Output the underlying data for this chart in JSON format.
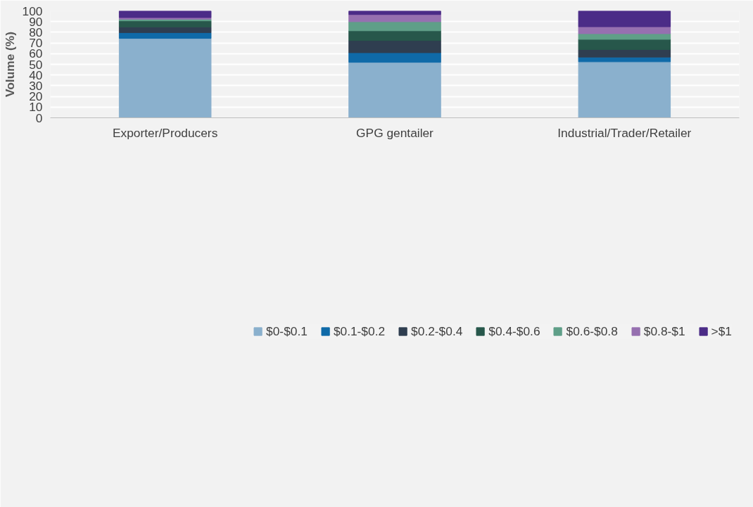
{
  "chart_data": {
    "type": "bar",
    "stacked": true,
    "ylabel": "Volume (%)",
    "categories": [
      "Exporter/Producers",
      "GPG gentailer",
      "Industrial/Trader/Retailer"
    ],
    "series": [
      {
        "name": "$0-$0.1",
        "color": "#8ab0cd",
        "values": [
          74.3,
          51.9,
          52.4
        ]
      },
      {
        "name": "$0.1-$0.2",
        "color": "#0f6aa8",
        "values": [
          5.4,
          9.0,
          4.4
        ]
      },
      {
        "name": "$0.2-$0.4",
        "color": "#2f3e50",
        "values": [
          5.3,
          11.4,
          7.1
        ]
      },
      {
        "name": "$0.4-$0.6",
        "color": "#27574b",
        "values": [
          5.7,
          9.1,
          9.5
        ]
      },
      {
        "name": "$0.6-$0.8",
        "color": "#5f9f88",
        "values": [
          1.6,
          8.5,
          5.3
        ]
      },
      {
        "name": "$0.8-$1",
        "color": "#9670b0",
        "values": [
          1.5,
          6.7,
          6.5
        ]
      },
      {
        "name": ">$1",
        "color": "#4b2c87",
        "values": [
          6.2,
          3.4,
          14.8
        ]
      }
    ],
    "ylim": [
      0,
      100
    ],
    "yticks": [
      0,
      10,
      20,
      30,
      40,
      50,
      60,
      70,
      80,
      90,
      100
    ],
    "grid": "y",
    "legend": "bottom"
  }
}
